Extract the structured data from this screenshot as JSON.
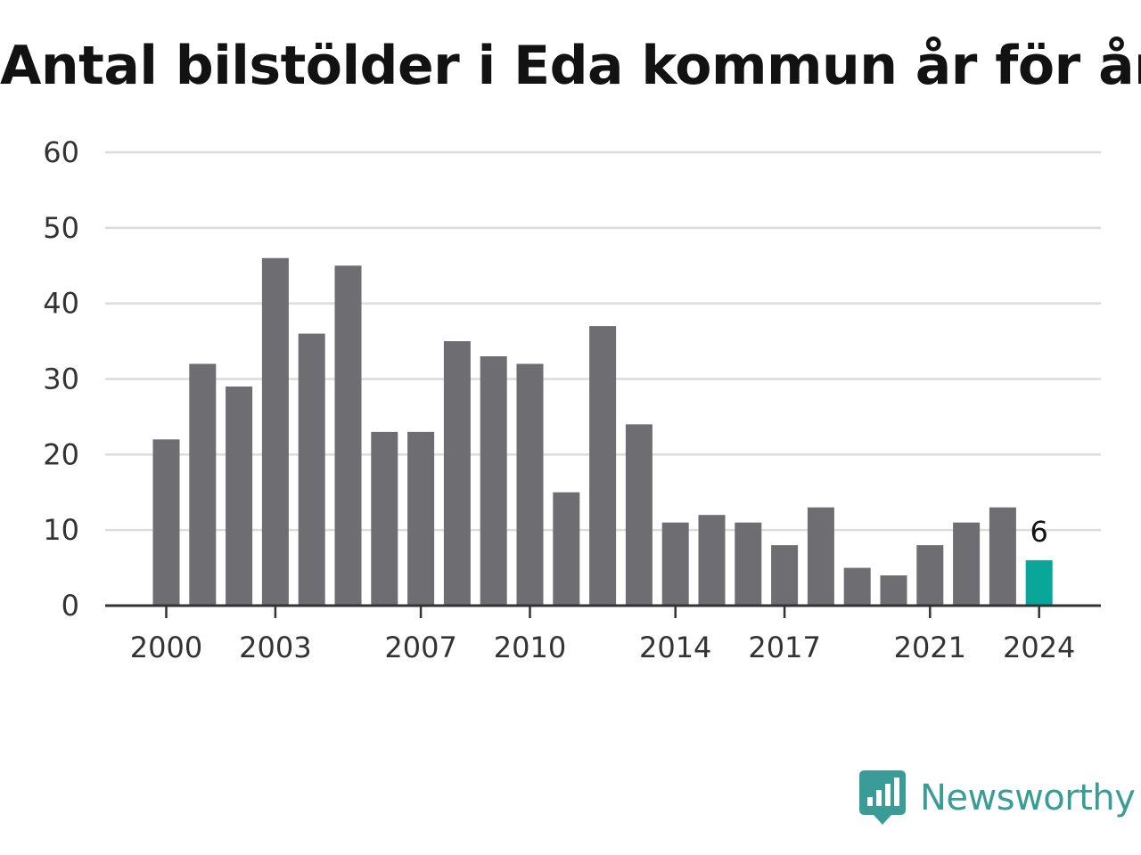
{
  "chart_data": {
    "type": "bar",
    "title": "Antal bilstölder i Eda kommun år för år",
    "xlabel": "",
    "ylabel": "",
    "ylim": [
      0,
      60
    ],
    "y_ticks": [
      "0",
      "10",
      "20",
      "30",
      "40",
      "50",
      "60"
    ],
    "x_tick_labels": [
      "2000",
      "2003",
      "2007",
      "2010",
      "2014",
      "2017",
      "2021",
      "2024"
    ],
    "grid": true,
    "categories": [
      "2000",
      "2001",
      "2002",
      "2003",
      "2004",
      "2005",
      "2006",
      "2007",
      "2008",
      "2009",
      "2010",
      "2011",
      "2012",
      "2013",
      "2014",
      "2015",
      "2016",
      "2017",
      "2018",
      "2019",
      "2020",
      "2021",
      "2022",
      "2023",
      "2024"
    ],
    "values": [
      22,
      32,
      29,
      46,
      36,
      45,
      23,
      23,
      35,
      33,
      32,
      15,
      37,
      24,
      11,
      12,
      11,
      8,
      13,
      5,
      4,
      8,
      11,
      13,
      6
    ],
    "highlight": {
      "category": "2024",
      "label": "6"
    },
    "colors": {
      "bar": "#6e6d72",
      "highlight": "#0aa69a",
      "grid": "#dcdcdc",
      "axis": "#333333"
    }
  },
  "brand": {
    "name": "Newsworthy",
    "icon": "newsworthy-logo-icon",
    "color": "#3a9c96"
  }
}
